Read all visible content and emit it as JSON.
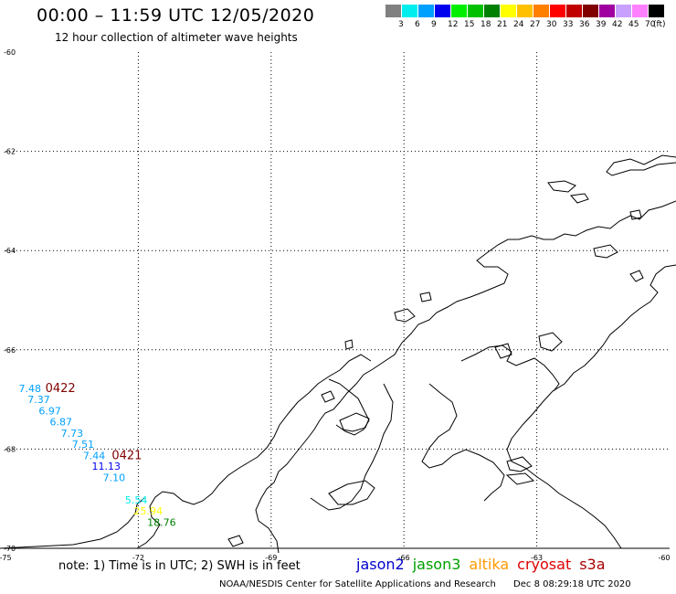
{
  "header": {
    "title": "00:00 – 11:59 UTC 12/05/2020",
    "subtitle": "12 hour collection of altimeter wave heights"
  },
  "color_scale": {
    "unit": "(ft)",
    "bins": [
      {
        "label": "3",
        "color": "#808080"
      },
      {
        "label": "6",
        "color": "#00eeee"
      },
      {
        "label": "9",
        "color": "#00a0ff"
      },
      {
        "label": "12",
        "color": "#0000ee"
      },
      {
        "label": "15",
        "color": "#00ee00"
      },
      {
        "label": "18",
        "color": "#00c000"
      },
      {
        "label": "21",
        "color": "#008000"
      },
      {
        "label": "24",
        "color": "#ffff00"
      },
      {
        "label": "27",
        "color": "#ffc000"
      },
      {
        "label": "30",
        "color": "#ff8000"
      },
      {
        "label": "33",
        "color": "#ff0000"
      },
      {
        "label": "36",
        "color": "#c00000"
      },
      {
        "label": "39",
        "color": "#800000"
      },
      {
        "label": "42",
        "color": "#a000a0"
      },
      {
        "label": "45",
        "color": "#c8a0ff"
      },
      {
        "label": "70",
        "color": "#ff80ff"
      },
      {
        "label": "",
        "color": "#000000"
      }
    ]
  },
  "map": {
    "lon_ticks": [
      "-75",
      "-72",
      "-69",
      "-66",
      "-63",
      "-60"
    ],
    "lat_ticks": [
      "-60",
      "-62",
      "-64",
      "-66",
      "-68",
      "-70"
    ],
    "time_labels": [
      {
        "text": "0422",
        "lon": -74.1,
        "lat": -66.85,
        "color": "#800000"
      },
      {
        "text": "0421",
        "lon": -72.6,
        "lat": -68.2,
        "color": "#800000"
      }
    ],
    "observations": [
      {
        "text": "7.48",
        "lon": -74.7,
        "lat": -66.85,
        "color": "#00a0ff"
      },
      {
        "text": "7.37",
        "lon": -74.5,
        "lat": -67.07,
        "color": "#00a0ff"
      },
      {
        "text": "6.97",
        "lon": -74.25,
        "lat": -67.3,
        "color": "#00a0ff"
      },
      {
        "text": "6.87",
        "lon": -74.0,
        "lat": -67.52,
        "color": "#00a0ff"
      },
      {
        "text": "7.73",
        "lon": -73.75,
        "lat": -67.75,
        "color": "#00a0ff"
      },
      {
        "text": "7.51",
        "lon": -73.5,
        "lat": -67.97,
        "color": "#00a0ff"
      },
      {
        "text": "7.44",
        "lon": -73.25,
        "lat": -68.2,
        "color": "#00a0ff"
      },
      {
        "text": "11.13",
        "lon": -73.05,
        "lat": -68.42,
        "color": "#0000ee"
      },
      {
        "text": "7.10",
        "lon": -72.8,
        "lat": -68.65,
        "color": "#00a0ff"
      },
      {
        "text": "5.54",
        "lon": -72.3,
        "lat": -69.1,
        "color": "#00eeee"
      },
      {
        "text": "25.94",
        "lon": -72.1,
        "lat": -69.32,
        "color": "#ffff00"
      },
      {
        "text": "18.76",
        "lon": -71.8,
        "lat": -69.55,
        "color": "#008000"
      }
    ]
  },
  "bottom": {
    "note": "note: 1) Time is in UTC; 2) SWH is in feet",
    "satellites": [
      {
        "name": "jason2",
        "color": "#0000cc"
      },
      {
        "name": "jason3",
        "color": "#00a000"
      },
      {
        "name": "altika",
        "color": "#ff9900"
      },
      {
        "name": "cryosat",
        "color": "#dd0000"
      },
      {
        "name": "s3a",
        "color": "#aa0000"
      }
    ],
    "credit": "NOAA/NESDIS Center for Satellite Applications and Research",
    "timestamp": "Dec  8 08:29:18 UTC 2020"
  }
}
